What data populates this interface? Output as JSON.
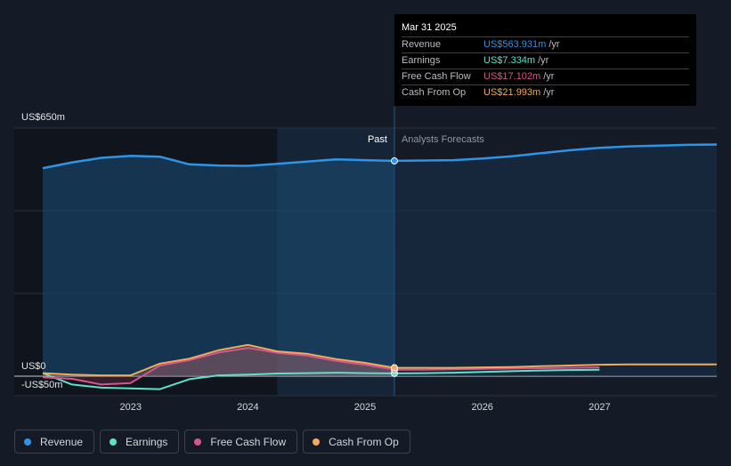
{
  "chart_data": {
    "type": "line",
    "y_top_label": "US$650m",
    "y_zero_label": "US$0",
    "y_neg_label": "-US$50m",
    "ylim": [
      -50,
      650
    ],
    "xlim": [
      2022.25,
      2028.0
    ],
    "x_ticks": [
      "2023",
      "2024",
      "2025",
      "2026",
      "2027"
    ],
    "past_label": "Past",
    "forecast_label": "Analysts Forecasts",
    "forecast_start": 2025.25,
    "highlight_start": 2024.25,
    "series": [
      {
        "name": "Revenue",
        "color": "#2f93e6",
        "x": [
          2022.25,
          2022.5,
          2022.75,
          2023.0,
          2023.25,
          2023.5,
          2023.75,
          2024.0,
          2024.25,
          2024.5,
          2024.75,
          2025.0,
          2025.25,
          2025.5,
          2025.75,
          2026.0,
          2026.25,
          2026.5,
          2026.75,
          2027.0,
          2027.25,
          2027.5,
          2027.75,
          2028.0
        ],
        "y": [
          545,
          560,
          572,
          577,
          575,
          555,
          552,
          551,
          556,
          562,
          568,
          566,
          564,
          565,
          566,
          570,
          576,
          584,
          592,
          598,
          602,
          604,
          606,
          607
        ]
      },
      {
        "name": "Earnings",
        "color": "#5fe0c9",
        "x": [
          2022.25,
          2022.5,
          2022.75,
          2023.0,
          2023.25,
          2023.5,
          2023.75,
          2024.0,
          2024.25,
          2024.5,
          2024.75,
          2025.0,
          2025.25,
          2025.5,
          2025.75,
          2026.0,
          2026.25,
          2026.5,
          2026.75,
          2027.0
        ],
        "y": [
          8,
          -22,
          -30,
          -32,
          -34,
          -8,
          2,
          4,
          7,
          8,
          9,
          8,
          7.3,
          8,
          9,
          11,
          13,
          15,
          16,
          17
        ]
      },
      {
        "name": "Free Cash Flow",
        "color": "#d6558d",
        "x": [
          2022.25,
          2022.5,
          2022.75,
          2023.0,
          2023.25,
          2023.5,
          2023.75,
          2024.0,
          2024.25,
          2024.5,
          2024.75,
          2025.0,
          2025.25,
          2025.5,
          2025.75,
          2026.0,
          2026.25,
          2026.5,
          2026.75,
          2027.0
        ],
        "y": [
          -3,
          -7,
          -22,
          -18,
          28,
          42,
          62,
          74,
          61,
          54,
          40,
          30,
          17.1,
          17,
          18,
          19,
          20,
          21,
          22,
          23
        ]
      },
      {
        "name": "Cash From Op",
        "color": "#f0ab5b",
        "x": [
          2022.25,
          2022.5,
          2022.75,
          2023.0,
          2023.25,
          2023.5,
          2023.75,
          2024.0,
          2024.25,
          2024.5,
          2024.75,
          2025.0,
          2025.25,
          2025.5,
          2025.75,
          2026.0,
          2026.25,
          2026.5,
          2026.75,
          2027.0,
          2027.25,
          2027.5,
          2027.75,
          2028.0
        ],
        "y": [
          8,
          4,
          2,
          2,
          33,
          46,
          68,
          82,
          65,
          59,
          45,
          35,
          22,
          22,
          22,
          23,
          24,
          26,
          28,
          30,
          31,
          31,
          31,
          31
        ]
      }
    ]
  },
  "tooltip": {
    "date": "Mar 31 2025",
    "rows": [
      {
        "label": "Revenue",
        "value": "US$563.931m",
        "unit": "/yr",
        "color": "#2f93e6"
      },
      {
        "label": "Earnings",
        "value": "US$7.334m",
        "unit": "/yr",
        "color": "#5fe0c9"
      },
      {
        "label": "Free Cash Flow",
        "value": "US$17.102m",
        "unit": "/yr",
        "color": "#d6558d"
      },
      {
        "label": "Cash From Op",
        "value": "US$21.993m",
        "unit": "/yr",
        "color": "#f0ab5b"
      }
    ]
  },
  "legend": [
    {
      "label": "Revenue",
      "color": "#2f93e6"
    },
    {
      "label": "Earnings",
      "color": "#5fe0c9"
    },
    {
      "label": "Free Cash Flow",
      "color": "#d6558d"
    },
    {
      "label": "Cash From Op",
      "color": "#f0ab5b"
    }
  ]
}
